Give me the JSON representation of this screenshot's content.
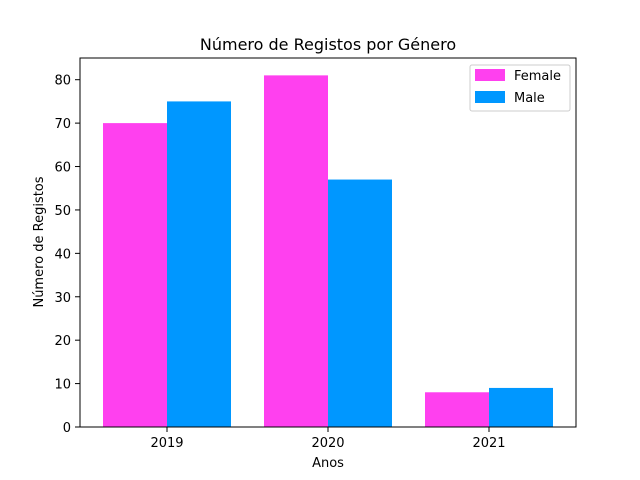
{
  "chart_data": {
    "type": "bar",
    "title": "Número de Registos por Género",
    "xlabel": "Anos",
    "ylabel": "Número de Registos",
    "categories": [
      "2019",
      "2020",
      "2021"
    ],
    "series": [
      {
        "name": "Female",
        "values": [
          70,
          81,
          8
        ],
        "color": "#ff40ef"
      },
      {
        "name": "Male",
        "values": [
          75,
          57,
          9
        ],
        "color": "#0097ff"
      }
    ],
    "ylim": [
      0,
      85
    ],
    "yticks": [
      0,
      10,
      20,
      30,
      40,
      50,
      60,
      70,
      80
    ],
    "grid": false,
    "legend_position": "top-right"
  }
}
